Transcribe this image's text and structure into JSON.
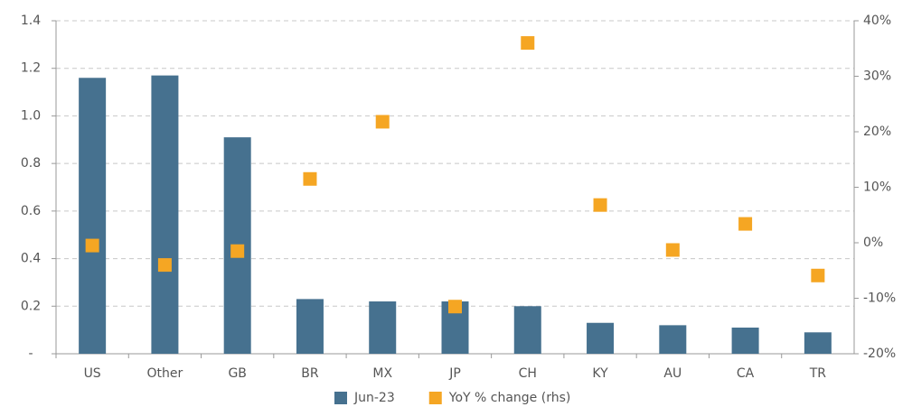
{
  "chart_data": {
    "type": "bar",
    "categories": [
      "US",
      "Other",
      "GB",
      "BR",
      "MX",
      "JP",
      "CH",
      "KY",
      "AU",
      "CA",
      "TR"
    ],
    "series": [
      {
        "name": "Jun-23",
        "type": "bar",
        "color": "#46718f",
        "values": [
          1.16,
          1.17,
          0.91,
          0.23,
          0.22,
          0.22,
          0.2,
          0.13,
          0.12,
          0.11,
          0.09
        ]
      },
      {
        "name": "YoY % change (rhs)",
        "type": "scatter",
        "axis": "y2",
        "color": "#f5a623",
        "values": [
          -0.5,
          -4,
          -1.5,
          11.5,
          21.8,
          -11.5,
          36,
          6.8,
          -1.3,
          3.4,
          -5.9
        ]
      }
    ],
    "ylim": [
      0,
      1.4
    ],
    "yticks": [
      {
        "value": 0,
        "label": "-"
      },
      0.2,
      0.4,
      0.6,
      0.8,
      {
        "value": 1,
        "label": "1.0"
      },
      1.2,
      1.4
    ],
    "y2lim": [
      -20,
      40
    ],
    "y2ticks": [
      {
        "value": -20,
        "label": "-20%"
      },
      {
        "value": -10,
        "label": "-10%"
      },
      {
        "value": 0,
        "label": "0%"
      },
      {
        "value": 10,
        "label": "10%"
      },
      {
        "value": 20,
        "label": "20%"
      },
      {
        "value": 30,
        "label": "30%"
      },
      {
        "value": 40,
        "label": "40%"
      }
    ],
    "grid": true,
    "legend": "bottom"
  }
}
